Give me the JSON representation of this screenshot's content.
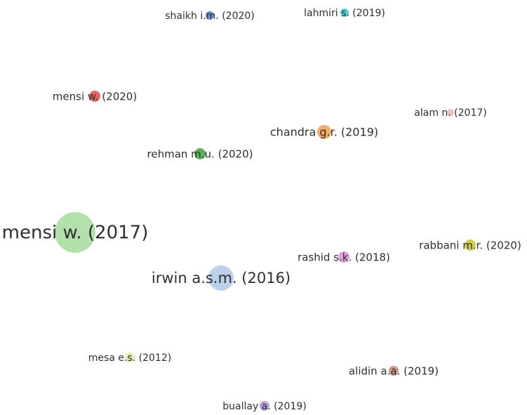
{
  "nodes": [
    {
      "label": "shaikh i.m. (2020)"
    },
    {
      "label": "lahmiri s. (2019)"
    },
    {
      "label": "mensi w. (2020)"
    },
    {
      "label": "alam n. (2017)"
    },
    {
      "label": "chandra g.r. (2019)"
    },
    {
      "label": "rehman m.u. (2020)"
    },
    {
      "label": "mensi w. (2017)"
    },
    {
      "label": "rabbani m.r. (2020)"
    },
    {
      "label": "rashid s.k. (2018)"
    },
    {
      "label": "irwin a.s.m. (2016)"
    },
    {
      "label": "mesa e.s. (2012)"
    },
    {
      "label": "alidin a.a. (2019)"
    },
    {
      "label": "buallay a. (2019)"
    }
  ]
}
